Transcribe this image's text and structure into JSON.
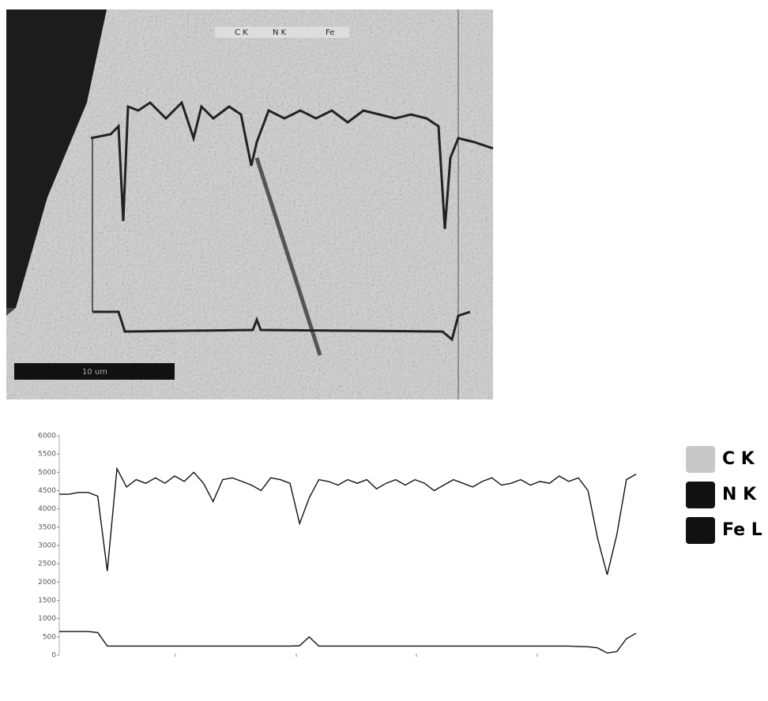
{
  "image": {
    "scale_bar": "10 um",
    "legend": [
      "C K",
      "N K",
      "Fe"
    ]
  },
  "chart_data": {
    "type": "line",
    "categories": [
      null,
      null,
      null,
      null,
      null,
      null,
      null,
      null,
      null,
      null,
      null,
      null,
      null,
      null,
      null,
      null,
      null,
      null,
      null,
      null,
      null,
      null,
      null,
      null,
      null,
      null,
      null,
      null,
      null,
      null,
      null,
      null,
      null,
      null,
      null,
      null,
      null,
      null,
      null,
      null,
      null,
      null,
      null,
      null,
      null,
      null,
      null,
      null,
      null,
      null,
      null,
      null,
      null,
      null,
      null,
      null,
      null,
      null,
      null,
      null,
      null
    ],
    "series": [
      {
        "name": "C K",
        "color": "#c8c8c8",
        "values": [
          null,
          null,
          null,
          null,
          null,
          null,
          null,
          null,
          null,
          null,
          null,
          null,
          null,
          null,
          null,
          null,
          null,
          null,
          null,
          null,
          null,
          null,
          null,
          null,
          null,
          null,
          null,
          null,
          null,
          null,
          null,
          null,
          null,
          null,
          null,
          null,
          null,
          null,
          null,
          null,
          null,
          null,
          null,
          null,
          null,
          null,
          null,
          null,
          null,
          null,
          null,
          null,
          null,
          null,
          null,
          null,
          null,
          null,
          null,
          null,
          null
        ]
      },
      {
        "name": "N K",
        "color": "#111111",
        "values": [
          650,
          650,
          650,
          650,
          620,
          250,
          250,
          250,
          250,
          250,
          250,
          250,
          250,
          250,
          250,
          250,
          250,
          250,
          250,
          250,
          250,
          250,
          250,
          250,
          250,
          260,
          500,
          250,
          250,
          250,
          250,
          250,
          250,
          250,
          250,
          250,
          250,
          250,
          250,
          250,
          250,
          250,
          250,
          250,
          250,
          250,
          250,
          250,
          250,
          250,
          250,
          250,
          250,
          250,
          240,
          230,
          200,
          60,
          100,
          450,
          600
        ]
      },
      {
        "name": "Fe L",
        "color": "#111111",
        "values": [
          4400,
          4400,
          4450,
          4450,
          4350,
          2300,
          5100,
          4600,
          4800,
          4700,
          4850,
          4700,
          4900,
          4750,
          5000,
          4700,
          4200,
          4800,
          4850,
          4750,
          4650,
          4500,
          4850,
          4800,
          4700,
          3600,
          4300,
          4800,
          4750,
          4650,
          4800,
          4700,
          4800,
          4550,
          4700,
          4800,
          4650,
          4800,
          4700,
          4500,
          4650,
          4800,
          4700,
          4600,
          4750,
          4850,
          4650,
          4700,
          4800,
          4650,
          4750,
          4700,
          4900,
          4750,
          4850,
          4500,
          3200,
          2200,
          3300,
          4800,
          4950
        ]
      }
    ],
    "ylim": [
      0,
      6000
    ],
    "yticks": [
      0,
      500,
      1000,
      1500,
      2000,
      2500,
      3000,
      3500,
      4000,
      4500,
      5000,
      5500,
      6000
    ]
  }
}
